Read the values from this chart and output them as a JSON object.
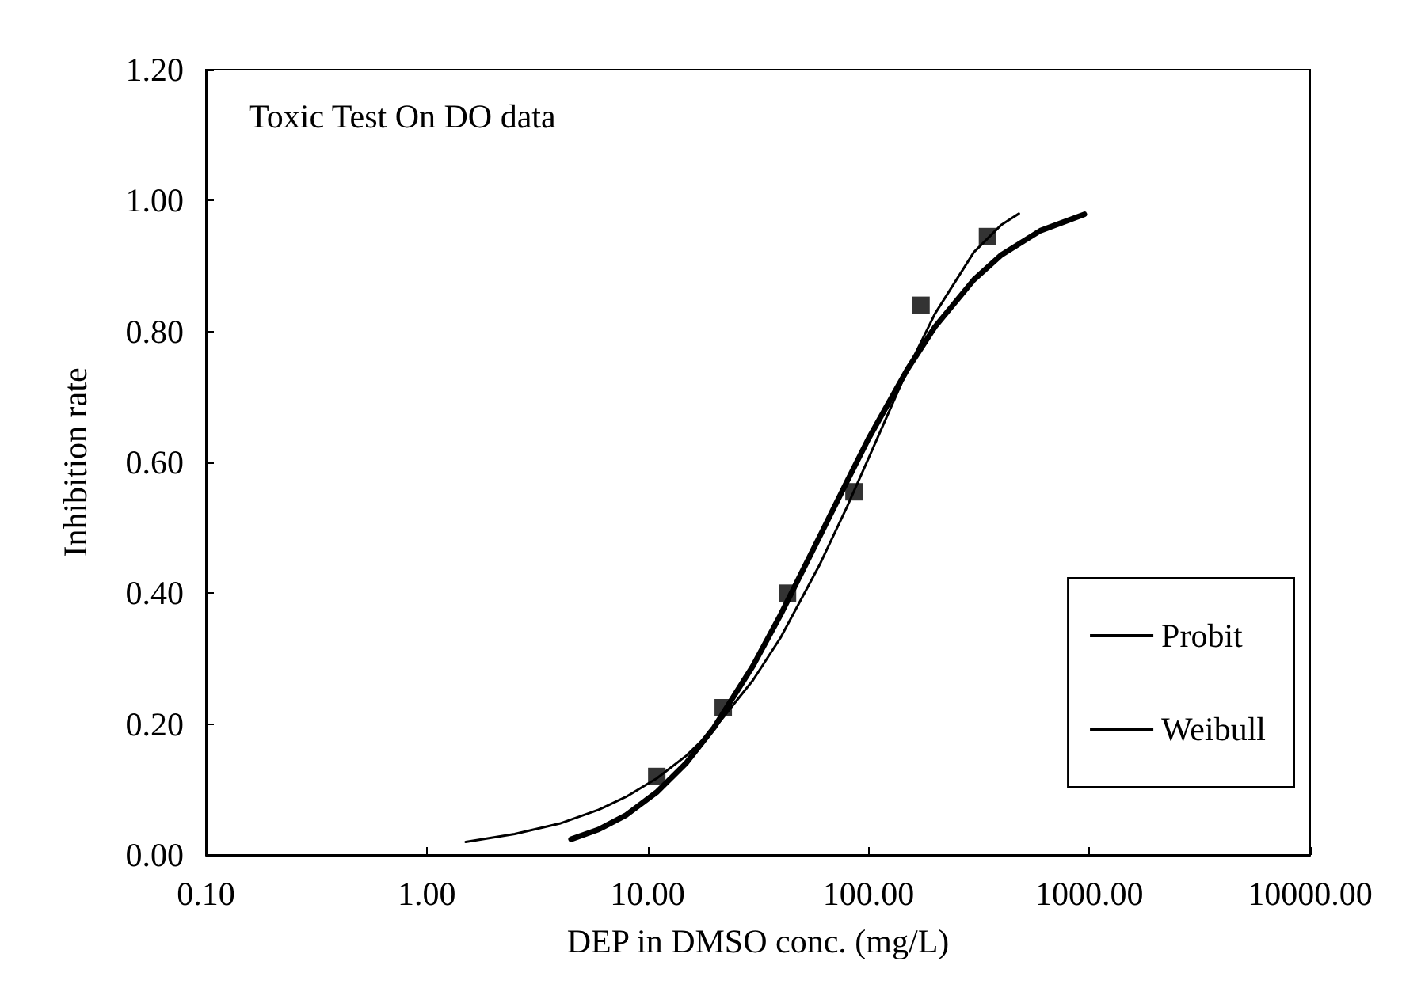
{
  "chart_data": {
    "type": "line",
    "title": "Toxic Test On DO data",
    "xlabel": "DEP in DMSO conc. (mg/L)",
    "ylabel": "Inhibition rate",
    "log": "x",
    "xlim": [
      0.1,
      10000
    ],
    "xticks": [
      {
        "value": 0.1,
        "label": "0.10"
      },
      {
        "value": 1,
        "label": "1.00"
      },
      {
        "value": 10,
        "label": "10.00"
      },
      {
        "value": 100,
        "label": "100.00"
      },
      {
        "value": 1000,
        "label": "1000.00"
      },
      {
        "value": 10000,
        "label": "10000.00"
      }
    ],
    "ylim": [
      0,
      1.2
    ],
    "yticks": [
      {
        "value": 0,
        "label": "0.00"
      },
      {
        "value": 0.2,
        "label": "0.20"
      },
      {
        "value": 0.4,
        "label": "0.40"
      },
      {
        "value": 0.6,
        "label": "0.60"
      },
      {
        "value": 0.8,
        "label": "0.80"
      },
      {
        "value": 1,
        "label": "1.00"
      },
      {
        "value": 1.2,
        "label": "1.20"
      }
    ],
    "grid": false,
    "legend": "bottom right",
    "series": [
      {
        "type": "scatter",
        "marker": "square",
        "color": "#000000",
        "x": [
          11,
          22,
          43,
          86,
          173,
          346
        ],
        "values": [
          0.12,
          0.225,
          0.4,
          0.555,
          0.84,
          0.945
        ]
      },
      {
        "name": "Probit",
        "marker": "none",
        "line_style": "solid",
        "color": "#000000",
        "x": [
          4.5,
          6,
          8,
          11,
          15,
          20,
          30,
          40,
          60,
          80,
          100,
          150,
          200,
          300,
          400,
          600,
          950
        ],
        "values": [
          0.024,
          0.039,
          0.061,
          0.096,
          0.141,
          0.195,
          0.289,
          0.367,
          0.486,
          0.571,
          0.636,
          0.742,
          0.807,
          0.879,
          0.917,
          0.954,
          0.979
        ]
      },
      {
        "name": "Weibull",
        "marker": "none",
        "line_style": "solid",
        "color": "#000000",
        "x": [
          1.5,
          2.5,
          4,
          6,
          8,
          11,
          15,
          20,
          30,
          40,
          60,
          80,
          100,
          150,
          200,
          300,
          400,
          480
        ],
        "values": [
          0.02,
          0.032,
          0.048,
          0.069,
          0.089,
          0.117,
          0.152,
          0.193,
          0.267,
          0.332,
          0.443,
          0.532,
          0.606,
          0.741,
          0.827,
          0.921,
          0.963,
          0.98
        ]
      }
    ]
  }
}
